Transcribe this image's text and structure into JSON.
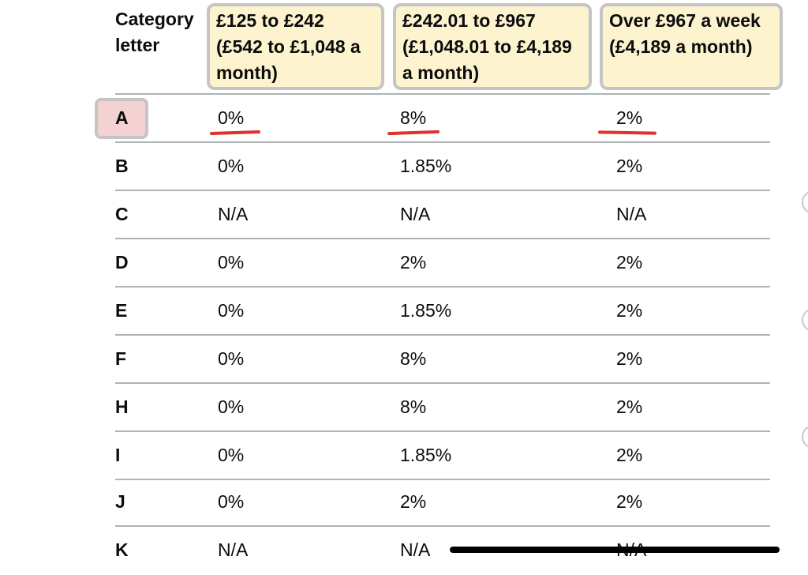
{
  "table": {
    "header": {
      "category": "Category letter",
      "col1": "£125 to £242 (£542 to £1,048 a month)",
      "col2": "£242.01 to £967 (£1,048.01 to £4,189 a month)",
      "col3": "Over £967 a week (£4,189 a month)"
    },
    "rows": [
      {
        "cat": "A",
        "c1": "0%",
        "c2": "8%",
        "c3": "2%"
      },
      {
        "cat": "B",
        "c1": "0%",
        "c2": "1.85%",
        "c3": "2%"
      },
      {
        "cat": "C",
        "c1": "N/A",
        "c2": "N/A",
        "c3": "N/A"
      },
      {
        "cat": "D",
        "c1": "0%",
        "c2": "2%",
        "c3": "2%"
      },
      {
        "cat": "E",
        "c1": "0%",
        "c2": "1.85%",
        "c3": "2%"
      },
      {
        "cat": "F",
        "c1": "0%",
        "c2": "8%",
        "c3": "2%"
      },
      {
        "cat": "H",
        "c1": "0%",
        "c2": "8%",
        "c3": "2%"
      },
      {
        "cat": "I",
        "c1": "0%",
        "c2": "1.85%",
        "c3": "2%"
      },
      {
        "cat": "J",
        "c1": "0%",
        "c2": "2%",
        "c3": "2%"
      },
      {
        "cat": "K",
        "c1": "N/A",
        "c2": "N/A",
        "c3": "N/A"
      }
    ]
  },
  "colors": {
    "header_highlight": "#fdf3cf",
    "row_highlight": "#f5d2d2",
    "underline": "#e0312e",
    "rule": "#b1b4b6"
  }
}
